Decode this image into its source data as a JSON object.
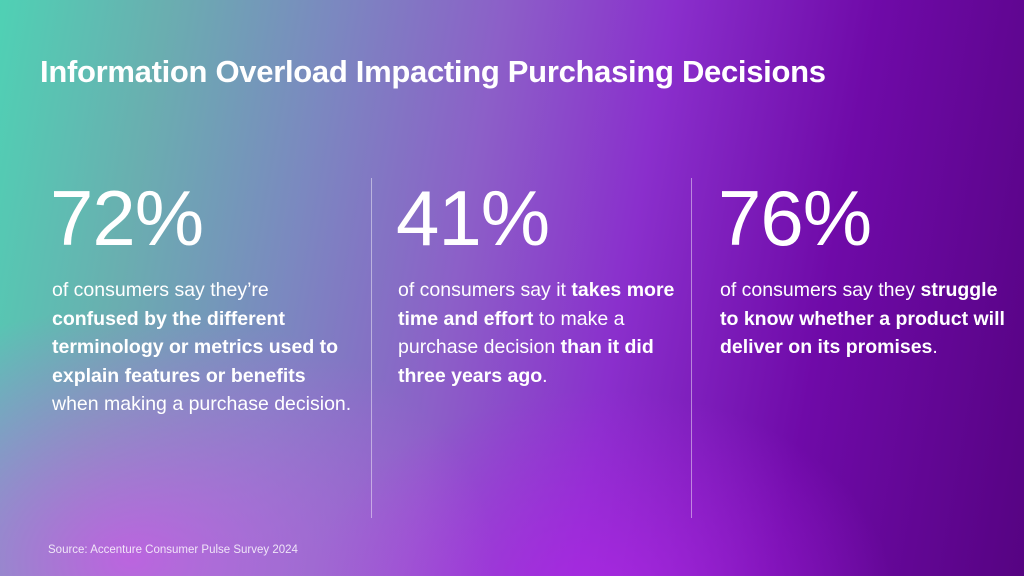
{
  "slide": {
    "title": "Information Overload Impacting Purchasing Decisions",
    "stats": [
      {
        "value": "72%",
        "segments": [
          {
            "text": "of consumers say they’re ",
            "bold": false
          },
          {
            "text": "confused by the different terminology or metrics used to explain features or benefits",
            "bold": true
          },
          {
            "text": " when making a purchase decision.",
            "bold": false
          }
        ]
      },
      {
        "value": "41%",
        "segments": [
          {
            "text": "of consumers say it ",
            "bold": false
          },
          {
            "text": "takes more time and effort",
            "bold": true
          },
          {
            "text": " to make a purchase decision ",
            "bold": false
          },
          {
            "text": "than it did three years ago",
            "bold": true
          },
          {
            "text": ".",
            "bold": false
          }
        ]
      },
      {
        "value": "76%",
        "segments": [
          {
            "text": "of consumers say they ",
            "bold": false
          },
          {
            "text": "struggle to know whether a product will deliver on its promises",
            "bold": true
          },
          {
            "text": ".",
            "bold": false
          }
        ]
      }
    ],
    "source": "Source: Accenture Consumer Pulse Survey 2024"
  },
  "colors": {
    "gradient_start": "#4fd1b4",
    "gradient_mid": "#8c5fc8",
    "gradient_end": "#560382",
    "text": "#ffffff"
  }
}
